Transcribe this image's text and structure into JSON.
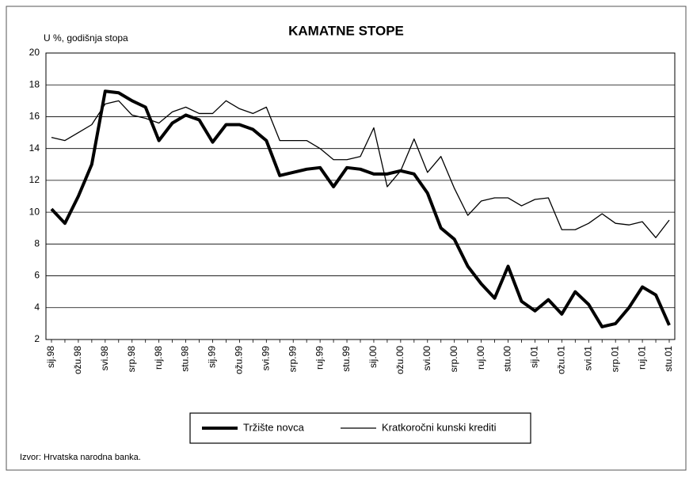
{
  "chart_data": {
    "type": "line",
    "title": "KAMATNE STOPE",
    "y_label": "U %, godišnja stopa",
    "source": "Izvor: Hrvatska narodna banka.",
    "categories": [
      "sij.98",
      null,
      "ožu.98",
      null,
      "svi.98",
      null,
      "srp.98",
      null,
      "ruj.98",
      null,
      "stu.98",
      null,
      "sij.99",
      null,
      "ožu.99",
      null,
      "svi.99",
      null,
      "srp.99",
      null,
      "ruj.99",
      null,
      "stu.99",
      null,
      "sij.00",
      null,
      "ožu.00",
      null,
      "svi.00",
      null,
      "srp.00",
      null,
      "ruj.00",
      null,
      "stu.00",
      null,
      "sij.01",
      null,
      "ožu.01",
      null,
      "svi.01",
      null,
      "srp.01",
      null,
      "ruj.01",
      null,
      "stu.01"
    ],
    "series": [
      {
        "name": "Tržište novca",
        "color": "#000000",
        "values": [
          10.2,
          9.3,
          11,
          13,
          17.6,
          17.5,
          17,
          16.6,
          14.5,
          15.6,
          16.1,
          15.8,
          14.4,
          15.5,
          15.5,
          15.2,
          14.5,
          12.3,
          12.5,
          12.7,
          12.8,
          11.6,
          12.8,
          12.7,
          12.4,
          12.4,
          12.6,
          12.4,
          11.2,
          9,
          8.3,
          6.6,
          5.5,
          4.6,
          6.6,
          4.4,
          3.8,
          4.5,
          3.6,
          5,
          4.2,
          2.8,
          3,
          4,
          5.3,
          4.8,
          2.9
        ]
      },
      {
        "name": "Kratkoročni kunski krediti",
        "color": "#000000",
        "values": [
          14.7,
          14.5,
          15,
          15.5,
          16.8,
          17,
          16.1,
          15.9,
          15.6,
          16.3,
          16.6,
          16.2,
          16.2,
          17,
          16.5,
          16.2,
          16.6,
          14.5,
          14.5,
          14.5,
          14,
          13.3,
          13.3,
          13.5,
          15.3,
          11.6,
          12.6,
          14.6,
          12.5,
          13.5,
          11.5,
          9.8,
          10.7,
          10.9,
          10.9,
          10.4,
          10.8,
          10.9,
          8.9,
          8.9,
          9.3,
          9.9,
          9.3,
          9.2,
          9.4,
          8.4,
          9.5
        ]
      }
    ],
    "ylim": [
      2,
      20
    ],
    "yticks": [
      2,
      4,
      6,
      8,
      10,
      12,
      14,
      16,
      18,
      20
    ],
    "grid": true,
    "legend": "bottom"
  }
}
